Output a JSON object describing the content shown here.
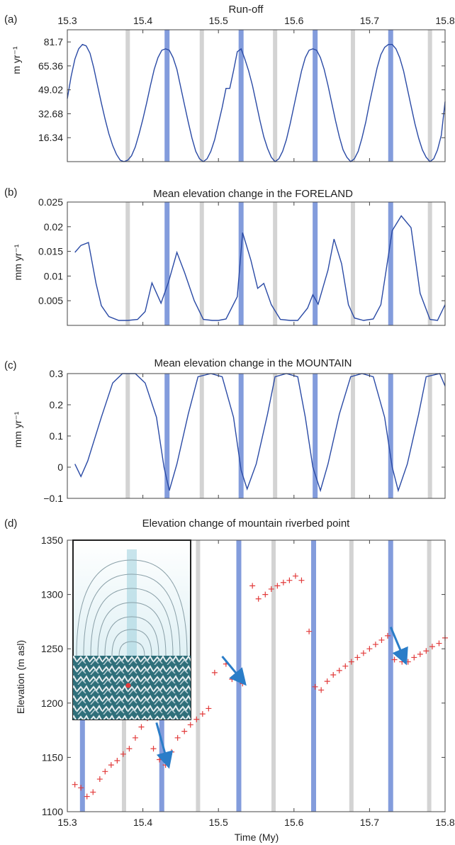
{
  "figure": {
    "type": "line",
    "x_tick_labels": [
      "15.3",
      "15.4",
      "15.5",
      "15.6",
      "15.7",
      "15.8"
    ],
    "xlabel": "Time (My)",
    "colors": {
      "series": "#2a4aa5",
      "marker": "#e23b3b",
      "max_band": "#6d8bd6",
      "min_band": "#d3d3d3",
      "arrow": "#2a7dc8"
    }
  },
  "chart_data": [
    {
      "panel_label": "(a)",
      "type": "line",
      "title": "Run-off",
      "ylabel": "m yr⁻¹",
      "xlim": [
        15.3,
        15.8
      ],
      "ylim": [
        0,
        90
      ],
      "y_ticks": [
        16.34,
        32.68,
        49.02,
        65.36,
        81.7
      ],
      "y_tick_labels": [
        "16.34",
        "32.68",
        "49.02",
        "65.36",
        "81.7"
      ],
      "x_tick_labels_on_top": true,
      "series": [
        {
          "x": [
            15.3,
            15.305,
            15.31,
            15.315,
            15.32,
            15.325,
            15.33,
            15.335,
            15.34,
            15.345,
            15.35,
            15.355,
            15.36,
            15.365,
            15.37,
            15.375,
            15.38,
            15.385,
            15.39,
            15.395,
            15.4,
            15.405,
            15.41,
            15.415,
            15.42,
            15.425,
            15.43,
            15.435,
            15.44,
            15.445,
            15.45,
            15.455,
            15.46,
            15.465,
            15.47,
            15.475,
            15.48,
            15.485,
            15.49,
            15.495,
            15.5,
            15.505,
            15.51,
            15.515,
            15.52,
            15.525,
            15.53,
            15.535,
            15.54,
            15.545,
            15.55,
            15.555,
            15.56,
            15.565,
            15.57,
            15.575,
            15.58,
            15.585,
            15.59,
            15.595,
            15.6,
            15.605,
            15.61,
            15.615,
            15.62,
            15.625,
            15.63,
            15.635,
            15.64,
            15.645,
            15.65,
            15.655,
            15.66,
            15.665,
            15.67,
            15.675,
            15.68,
            15.685,
            15.69,
            15.695,
            15.7,
            15.705,
            15.71,
            15.715,
            15.72,
            15.725,
            15.73,
            15.735,
            15.74,
            15.745,
            15.75,
            15.755,
            15.76,
            15.765,
            15.77,
            15.775,
            15.78,
            15.785,
            15.79,
            15.795,
            15.8
          ],
          "y": [
            43,
            58,
            70,
            77,
            80,
            79,
            74,
            64,
            52,
            40,
            29,
            19,
            11,
            5,
            1,
            0,
            1,
            4,
            10,
            19,
            29,
            40,
            52,
            63,
            71,
            76,
            77,
            76,
            71,
            63,
            51,
            39,
            27,
            16,
            7,
            2,
            0,
            2,
            7,
            15,
            26,
            37,
            50,
            50,
            62,
            75,
            77,
            70,
            62,
            52,
            40,
            28,
            17,
            9,
            3,
            0,
            2,
            7,
            15,
            26,
            38,
            50,
            62,
            71,
            76,
            77,
            76,
            71,
            63,
            52,
            40,
            28,
            17,
            8,
            3,
            0,
            2,
            7,
            16,
            27,
            40,
            52,
            64,
            73,
            78,
            80,
            80,
            77,
            71,
            62,
            50,
            38,
            26,
            16,
            8,
            3,
            0,
            2,
            8,
            18,
            41
          ]
        }
      ]
    },
    {
      "panel_label": "(b)",
      "type": "line",
      "title": "Mean elevation change in the FORELAND",
      "ylabel": "mm yr⁻¹",
      "xlim": [
        15.3,
        15.8
      ],
      "ylim": [
        0,
        0.025
      ],
      "y_ticks": [
        0.005,
        0.01,
        0.015,
        0.02,
        0.025
      ],
      "y_tick_labels": [
        "0.005",
        "0.01",
        "0.015",
        "0.02",
        "0.025"
      ],
      "series": [
        {
          "x": [
            15.31,
            15.318,
            15.328,
            15.338,
            15.345,
            15.355,
            15.368,
            15.38,
            15.393,
            15.403,
            15.412,
            15.424,
            15.434,
            15.445,
            15.455,
            15.468,
            15.48,
            15.492,
            15.5,
            15.51,
            15.525,
            15.532,
            15.543,
            15.552,
            15.56,
            15.57,
            15.582,
            15.595,
            15.605,
            15.618,
            15.625,
            15.632,
            15.645,
            15.653,
            15.663,
            15.672,
            15.68,
            15.692,
            15.705,
            15.715,
            15.73,
            15.742,
            15.755,
            15.767,
            15.78,
            15.79,
            15.8
          ],
          "y": [
            0.0148,
            0.0162,
            0.0168,
            0.0085,
            0.004,
            0.0018,
            0.001,
            0.001,
            0.0012,
            0.0028,
            0.0086,
            0.0045,
            0.0088,
            0.0148,
            0.0108,
            0.005,
            0.0012,
            0.001,
            0.001,
            0.0013,
            0.0058,
            0.0188,
            0.0132,
            0.0075,
            0.0085,
            0.0042,
            0.0012,
            0.001,
            0.001,
            0.0035,
            0.0062,
            0.0043,
            0.0112,
            0.0175,
            0.0125,
            0.0042,
            0.0015,
            0.001,
            0.0013,
            0.0042,
            0.0192,
            0.0222,
            0.0198,
            0.0065,
            0.0012,
            0.001,
            0.0042
          ]
        }
      ]
    },
    {
      "panel_label": "(c)",
      "type": "line",
      "title": "Mean elevation change in the MOUNTAIN",
      "ylabel": "mm yr⁻¹",
      "xlim": [
        15.3,
        15.8
      ],
      "ylim": [
        -0.1,
        0.3
      ],
      "y_ticks": [
        -0.1,
        0,
        0.1,
        0.2,
        0.3
      ],
      "y_tick_labels": [
        "−0.1",
        "0",
        "0.1",
        "0.2",
        "0.3"
      ],
      "series": [
        {
          "x": [
            15.31,
            15.318,
            15.327,
            15.345,
            15.36,
            15.373,
            15.39,
            15.403,
            15.418,
            15.428,
            15.435,
            15.445,
            15.46,
            15.473,
            15.49,
            15.505,
            15.52,
            15.53,
            15.538,
            15.55,
            15.565,
            15.575,
            15.59,
            15.605,
            15.615,
            15.625,
            15.635,
            15.645,
            15.66,
            15.675,
            15.69,
            15.705,
            15.72,
            15.73,
            15.738,
            15.75,
            15.765,
            15.775,
            15.793,
            15.8
          ],
          "y": [
            0.01,
            -0.03,
            0.02,
            0.16,
            0.27,
            0.3,
            0.3,
            0.27,
            0.16,
            0.0,
            -0.075,
            0.01,
            0.17,
            0.29,
            0.3,
            0.29,
            0.16,
            -0.01,
            -0.07,
            0.01,
            0.17,
            0.29,
            0.3,
            0.29,
            0.16,
            0.0,
            -0.075,
            0.01,
            0.17,
            0.29,
            0.3,
            0.29,
            0.16,
            0.0,
            -0.075,
            0.01,
            0.17,
            0.29,
            0.3,
            0.26
          ]
        }
      ]
    },
    {
      "panel_label": "(d)",
      "type": "scatter",
      "title": "Elevation change of mountain riverbed point",
      "ylabel": "Elevation (m asl)",
      "xlabel": "Time (My)",
      "xlim": [
        15.3,
        15.8
      ],
      "ylim": [
        1100,
        1350
      ],
      "y_ticks": [
        1100,
        1150,
        1200,
        1250,
        1300,
        1350
      ],
      "y_tick_labels": [
        "1100",
        "1150",
        "1200",
        "1250",
        "1300",
        "1350"
      ],
      "series": [
        {
          "x": [
            15.31,
            15.318,
            15.326,
            15.334,
            15.343,
            15.35,
            15.358,
            15.366,
            15.374,
            15.382,
            15.39,
            15.398,
            15.406,
            15.414,
            15.422,
            15.43,
            15.438,
            15.446,
            15.455,
            15.463,
            15.471,
            15.479,
            15.487,
            15.495,
            15.51,
            15.518,
            15.532,
            15.545,
            15.553,
            15.562,
            15.57,
            15.578,
            15.586,
            15.594,
            15.602,
            15.61,
            15.62,
            15.628,
            15.636,
            15.644,
            15.652,
            15.66,
            15.668,
            15.676,
            15.684,
            15.692,
            15.7,
            15.708,
            15.716,
            15.724,
            15.733,
            15.743,
            15.751,
            15.759,
            15.767,
            15.775,
            15.783,
            15.792,
            15.8
          ],
          "y": [
            1125,
            1122,
            1114,
            1118,
            1130,
            1137,
            1143,
            1147,
            1153,
            1158,
            1168,
            1178,
            1186,
            1158,
            1148,
            1143,
            1155,
            1168,
            1174,
            1180,
            1185,
            1190,
            1195,
            1228,
            1236,
            1222,
            1218,
            1308,
            1296,
            1300,
            1305,
            1308,
            1311,
            1313,
            1317,
            1313,
            1266,
            1215,
            1212,
            1220,
            1226,
            1230,
            1234,
            1238,
            1242,
            1246,
            1250,
            1254,
            1258,
            1262,
            1240,
            1238,
            1238,
            1242,
            1245,
            1248,
            1252,
            1255,
            1260
          ]
        }
      ],
      "arrows": [
        {
          "from": [
            15.418,
            1182
          ],
          "to": [
            15.432,
            1147
          ]
        },
        {
          "from": [
            15.505,
            1243
          ],
          "to": [
            15.53,
            1222
          ]
        },
        {
          "from": [
            15.728,
            1270
          ],
          "to": [
            15.745,
            1242
          ]
        }
      ],
      "inset": "map with contour lines and a red point on a mountain relief"
    }
  ],
  "bands": {
    "max_times": [
      15.432,
      15.53,
      15.628,
      15.728
    ],
    "min_times": [
      15.38,
      15.478,
      15.575,
      15.678,
      15.78
    ],
    "d_max_times": [
      15.32,
      15.425,
      15.527,
      15.626,
      15.728
    ],
    "d_min_times": [
      15.375,
      15.473,
      15.573,
      15.676,
      15.779
    ]
  }
}
